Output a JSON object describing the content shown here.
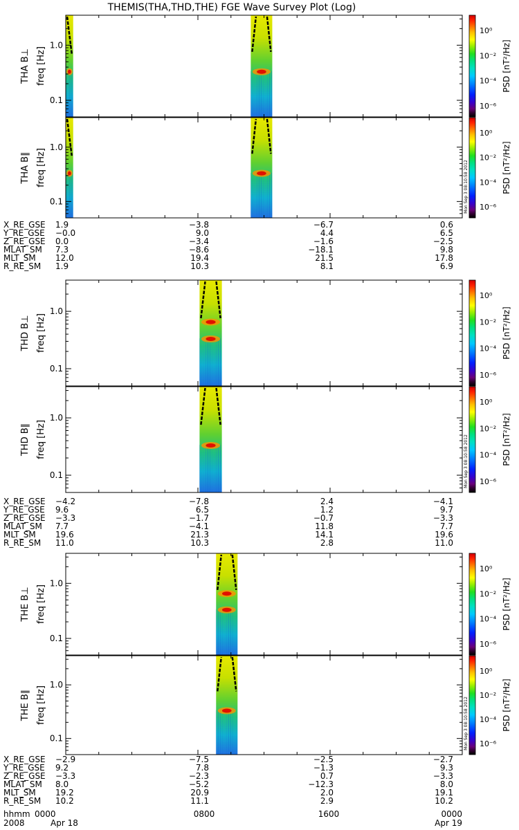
{
  "title": "THEMIS(THA,THD,THE) FGE Wave Survey Plot (Log)",
  "ylabel_units": "freq [Hz]",
  "colorbar": {
    "label": "PSD [nT²/Hz]",
    "ticks": [
      "10⁰",
      "10⁻²",
      "10⁻⁴",
      "10⁻⁶"
    ],
    "side_stamp": "Mon Sep 3 08:10:58 2012",
    "colors": [
      "#000000",
      "#300030",
      "#6a007a",
      "#3a00c8",
      "#0020ff",
      "#0080ff",
      "#00c8ff",
      "#00e0c0",
      "#00e080",
      "#20e020",
      "#a0f000",
      "#ffff00",
      "#ffc000",
      "#ff7000",
      "#ff2000",
      "#d00000"
    ]
  },
  "chart_data": {
    "type": "heatmap",
    "x_range_hours": [
      0,
      24
    ],
    "y_scale": "log",
    "ylim_hz": [
      0.05,
      3.5
    ],
    "y_ticks": [
      "1.0",
      "0.1"
    ],
    "probes": [
      {
        "name": "THA",
        "panels": [
          {
            "label": "THA B⊥",
            "segments": [
              {
                "start": 0.0,
                "end": 0.45
              },
              {
                "start": 11.2,
                "end": 12.5
              }
            ],
            "bands_hz": [
              0.33
            ]
          },
          {
            "label": "THA B∥",
            "segments": [
              {
                "start": 0.0,
                "end": 0.45
              },
              {
                "start": 11.2,
                "end": 12.5
              }
            ],
            "bands_hz": [
              0.33
            ]
          }
        ],
        "ephemeris": {
          "labels": [
            "X_RE_GSE",
            "Y_RE_GSE",
            "Z_RE_GSE",
            "MLAT_SM",
            "MLT_SM",
            "R_RE_SM"
          ],
          "values": [
            [
              "1.9",
              "−3.8",
              "−6.7",
              "0.6"
            ],
            [
              "−0.0",
              "9.0",
              "4.4",
              "6.5"
            ],
            [
              "0.0",
              "−3.4",
              "−1.6",
              "−2.5"
            ],
            [
              "7.3",
              "−8.6",
              "−18.1",
              "9.8"
            ],
            [
              "12.0",
              "19.4",
              "21.5",
              "17.8"
            ],
            [
              "1.9",
              "10.3",
              "8.1",
              "6.9"
            ]
          ]
        }
      },
      {
        "name": "THD",
        "panels": [
          {
            "label": "THD B⊥",
            "segments": [
              {
                "start": 8.1,
                "end": 9.45
              }
            ],
            "bands_hz": [
              0.33,
              0.65
            ]
          },
          {
            "label": "THD B∥",
            "segments": [
              {
                "start": 8.1,
                "end": 9.45
              }
            ],
            "bands_hz": [
              0.33
            ]
          }
        ],
        "ephemeris": {
          "labels": [
            "X_RE_GSE",
            "Y_RE_GSE",
            "Z_RE_GSE",
            "MLAT_SM",
            "MLT_SM",
            "R_RE_SM"
          ],
          "values": [
            [
              "−4.2",
              "−7.8",
              "2.4",
              "−4.1"
            ],
            [
              "9.6",
              "6.5",
              "1.2",
              "9.7"
            ],
            [
              "−3.3",
              "−1.7",
              "−0.7",
              "−3.3"
            ],
            [
              "7.7",
              "−4.1",
              "11.8",
              "7.7"
            ],
            [
              "19.6",
              "21.3",
              "14.1",
              "19.6"
            ],
            [
              "11.0",
              "10.3",
              "2.8",
              "11.0"
            ]
          ]
        }
      },
      {
        "name": "THE",
        "panels": [
          {
            "label": "THE B⊥",
            "segments": [
              {
                "start": 9.1,
                "end": 10.4
              }
            ],
            "bands_hz": [
              0.33,
              0.65
            ]
          },
          {
            "label": "THE B∥",
            "segments": [
              {
                "start": 9.1,
                "end": 10.4
              }
            ],
            "bands_hz": [
              0.33
            ]
          }
        ],
        "ephemeris": {
          "labels": [
            "X_RE_GSE",
            "Y_RE_GSE",
            "Z_RE_GSE",
            "MLAT_SM",
            "MLT_SM",
            "R_RE_SM"
          ],
          "values": [
            [
              "−2.9",
              "−7.5",
              "−2.5",
              "−2.7"
            ],
            [
              "9.2",
              "7.8",
              "−1.3",
              "9.3"
            ],
            [
              "−3.3",
              "−2.3",
              "0.7",
              "−3.3"
            ],
            [
              "8.0",
              "−5.2",
              "−12.3",
              "8.0"
            ],
            [
              "19.2",
              "20.9",
              "2.0",
              "19.1"
            ],
            [
              "10.2",
              "11.1",
              "2.9",
              "10.2"
            ]
          ]
        }
      }
    ],
    "time_axis": {
      "row1_label": "hhmm",
      "row1": [
        "0000",
        "0800",
        "1600",
        "0000"
      ],
      "row2_label": "2008",
      "row2": [
        "Apr 18",
        "",
        "",
        "Apr 19"
      ]
    }
  }
}
